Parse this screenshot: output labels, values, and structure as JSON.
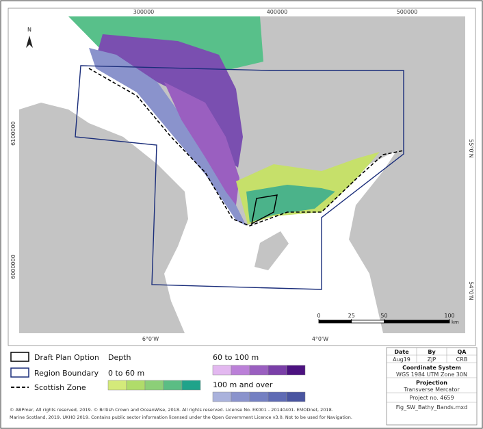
{
  "map": {
    "grid_labels": {
      "top": [
        "300000",
        "400000",
        "500000"
      ],
      "left": [
        "6100000",
        "6000000"
      ],
      "right": [
        "55°0'N",
        "54°0'N"
      ],
      "bottom": [
        "6°0'W",
        "4°0'W"
      ]
    },
    "north_arrow": "N",
    "scale_bar": {
      "ticks": [
        0,
        25,
        50,
        100
      ],
      "unit": "km"
    }
  },
  "legend": {
    "items": [
      "Draft Plan Option",
      "Region Boundary",
      "Scottish Zone"
    ],
    "depth_title": "Depth",
    "bands": [
      "0 to 60 m",
      "60 to 100 m",
      "100 m and over"
    ]
  },
  "info_table": {
    "header": [
      "Date",
      "By",
      "QA"
    ],
    "values": [
      "Aug19",
      "ZJP",
      "CRB"
    ],
    "coordinate_system_title": "Coordinate System",
    "coordinate_system": "WGS 1984 UTM Zone 30N",
    "projection_title": "Projection",
    "projection": "Transverse Mercator",
    "project_no": "Project no. 4659",
    "file_name": "Fig_SW_Bathy_Bands.mxd"
  },
  "copyright": [
    "© ABPmer, All rights reserved, 2019. © British Crown and OceanWise, 2018. All rights reserved. License No. EK001 - 20140401. EMODnet, 2018.",
    "Marine Scotland, 2019. UKHO 2019. Contains public sector information licensed under the Open Government Licence v3.0. Not to be used for Navigation."
  ]
}
